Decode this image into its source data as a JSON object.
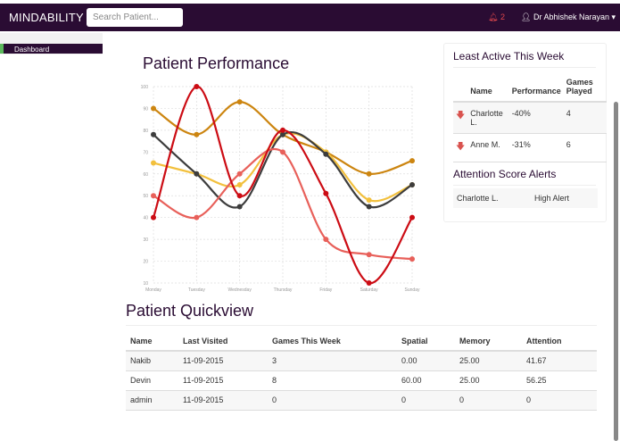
{
  "nav": {
    "brand": "MINDABILITY",
    "search_placeholder": "Search Patient...",
    "alert_count": "2",
    "user": "Dr Abhishek Narayan",
    "icons": [
      "bell-icon",
      "user-icon",
      "caret-down-icon"
    ]
  },
  "sidebar": {
    "items": [
      {
        "label": "Dashboard"
      }
    ]
  },
  "performance": {
    "title": "Patient Performance"
  },
  "chart_data": {
    "type": "line",
    "title": "Patient Performance",
    "categories": [
      "Monday",
      "Tuesday",
      "Wednesday",
      "Thursday",
      "Friday",
      "Saturday",
      "Sunday"
    ],
    "ylim": [
      10,
      100
    ],
    "yticks": [
      10,
      20,
      30,
      40,
      50,
      60,
      70,
      80,
      90,
      100
    ],
    "grid": true,
    "smooth": true,
    "series": [
      {
        "color": "#cc8510",
        "values": [
          90,
          78,
          93,
          78,
          70,
          60,
          66
        ]
      },
      {
        "color": "#f2c03d",
        "values": [
          65,
          60,
          55,
          78,
          70,
          48,
          55
        ]
      },
      {
        "color": "#3d3d3d",
        "values": [
          78,
          60,
          45,
          78,
          69,
          45,
          55
        ]
      },
      {
        "color": "#e8605a",
        "values": [
          50,
          40,
          60,
          70,
          30,
          23,
          21
        ]
      },
      {
        "color": "#cc0c14",
        "values": [
          40,
          100,
          50,
          80,
          51,
          10,
          40
        ]
      }
    ]
  },
  "least_active": {
    "title": "Least Active This Week",
    "headers": [
      "Name",
      "Performance",
      "Games Played"
    ],
    "rows": [
      {
        "name": "Charlotte L.",
        "performance": "-40%",
        "games": "4"
      },
      {
        "name": "Anne M.",
        "performance": "-31%",
        "games": "6"
      }
    ]
  },
  "attention_alerts": {
    "title": "Attention Score Alerts",
    "rows": [
      {
        "name": "Charlotte L.",
        "level": "High Alert"
      }
    ]
  },
  "quickview": {
    "title": "Patient Quickview",
    "headers": [
      "Name",
      "Last Visited",
      "Games This Week",
      "Spatial",
      "Memory",
      "Attention"
    ],
    "rows": [
      [
        "Nakib",
        "11-09-2015",
        "3",
        "0.00",
        "25.00",
        "41.67"
      ],
      [
        "Devin",
        "11-09-2015",
        "8",
        "60.00",
        "25.00",
        "56.25"
      ],
      [
        "admin",
        "11-09-2015",
        "0",
        "0",
        "0",
        "0"
      ]
    ]
  }
}
